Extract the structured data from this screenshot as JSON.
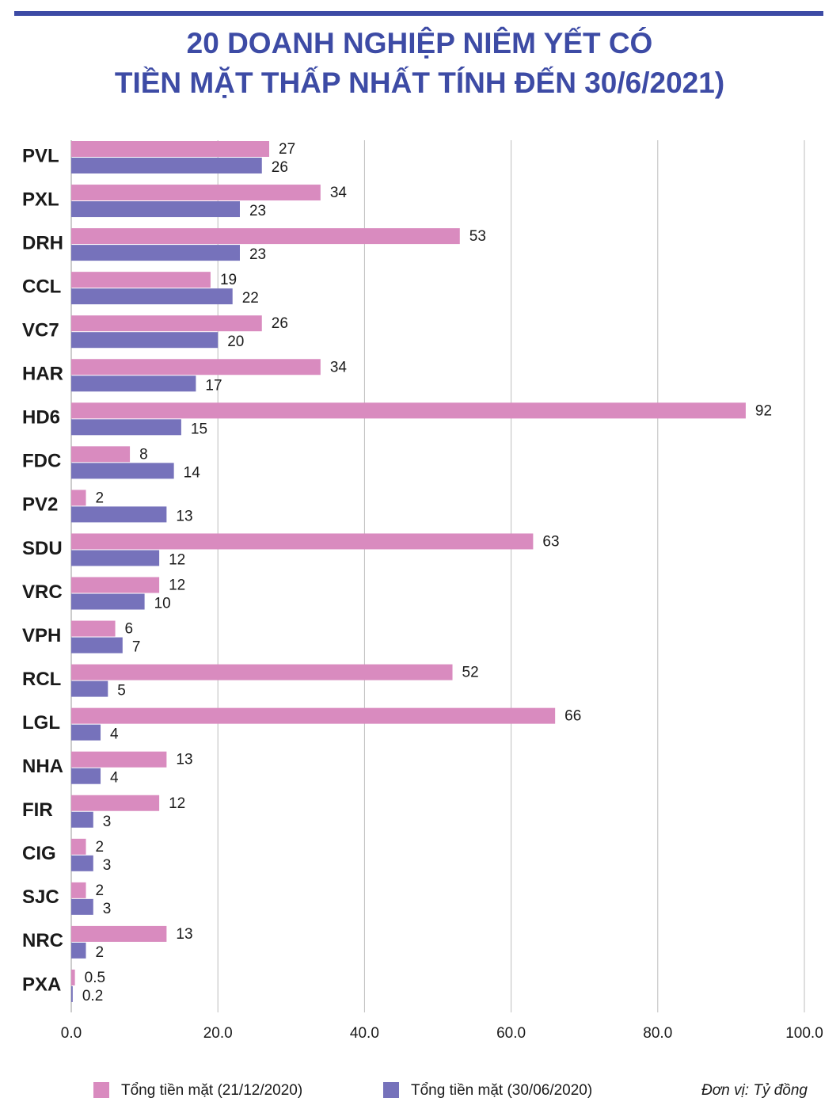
{
  "chart_data": {
    "type": "bar",
    "orientation": "horizontal",
    "title": [
      "20 DOANH NGHIỆP NIÊM YẾT CÓ",
      "TIỀN MẶT THẤP NHẤT TÍNH ĐẾN 30/6/2021)"
    ],
    "categories": [
      "PVL",
      "PXL",
      "DRH",
      "CCL",
      "VC7",
      "HAR",
      "HD6",
      "FDC",
      "PV2",
      "SDU",
      "VRC",
      "VPH",
      "RCL",
      "LGL",
      "NHA",
      "FIR",
      "CIG",
      "SJC",
      "NRC",
      "PXA"
    ],
    "series": [
      {
        "name": "Tổng tiền mặt (21/12/2020)",
        "color": "#d98bbf",
        "values": [
          27,
          34,
          53,
          19,
          26,
          34,
          92,
          8,
          2,
          63,
          12,
          6,
          52,
          66,
          13,
          12,
          2,
          2,
          13,
          0.5
        ]
      },
      {
        "name": "Tổng tiền mặt (30/06/2020)",
        "color": "#7672bb",
        "values": [
          26,
          23,
          23,
          22,
          20,
          17,
          15,
          14,
          13,
          12,
          10,
          7,
          5,
          4,
          4,
          3,
          3,
          3,
          2,
          0.2
        ]
      }
    ],
    "xlim": [
      0,
      100
    ],
    "xticks": [
      {
        "value": 0,
        "label": "0.0"
      },
      {
        "value": 20,
        "label": "20.0"
      },
      {
        "value": 40,
        "label": "40.0"
      },
      {
        "value": 60,
        "label": "60.0"
      },
      {
        "value": 80,
        "label": "80.0"
      },
      {
        "value": 100,
        "label": "100.0"
      }
    ],
    "grid": true,
    "unit_note": "Đơn vị: Tỷ đồng"
  }
}
